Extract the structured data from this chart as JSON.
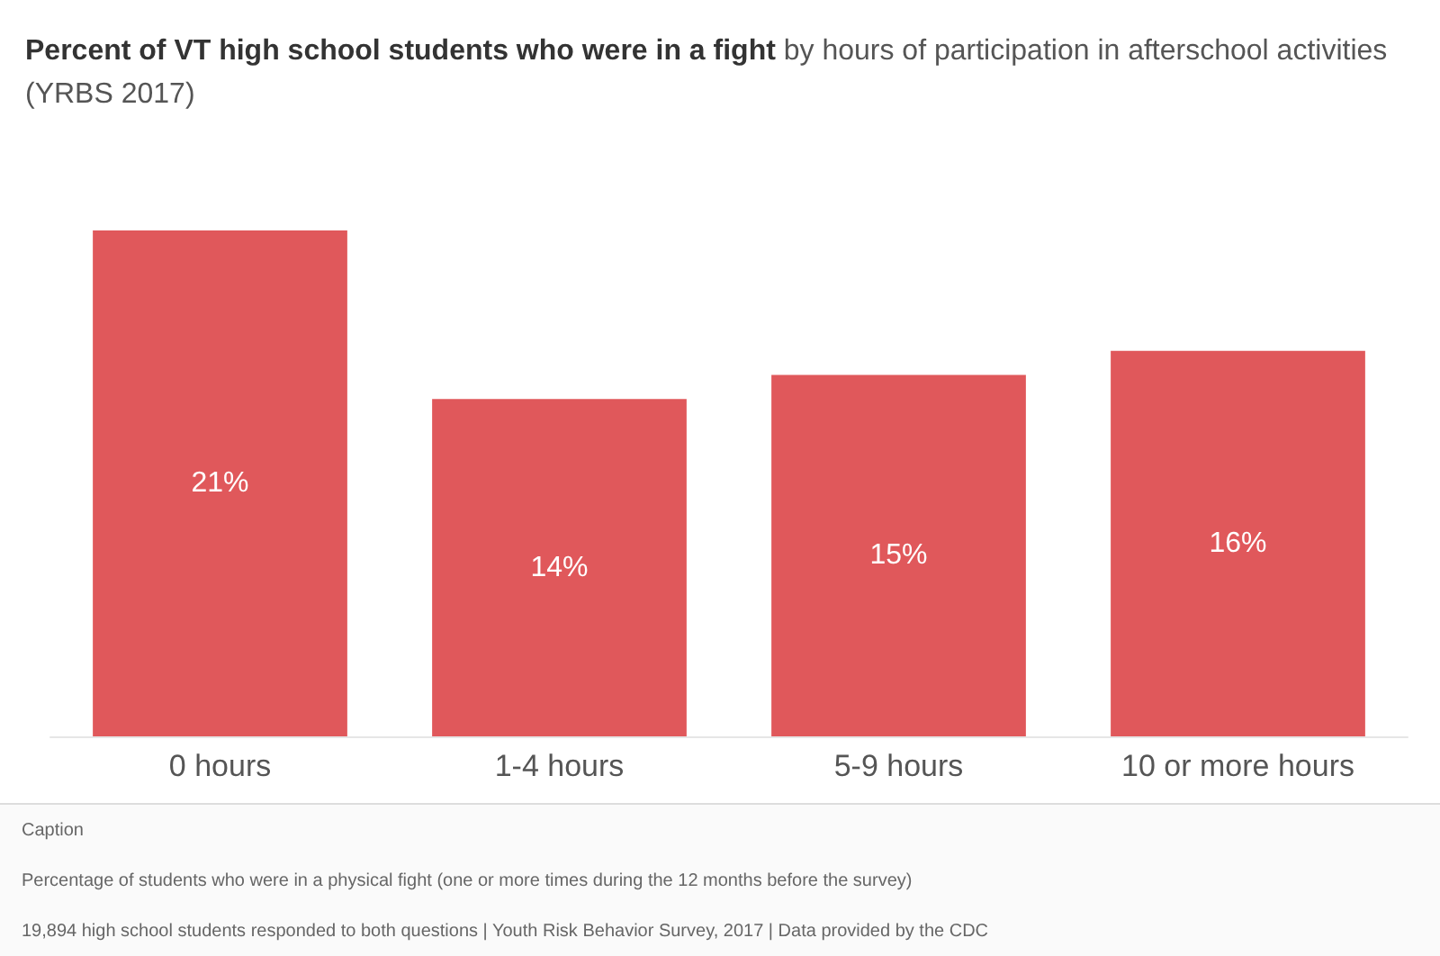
{
  "chart_data": {
    "type": "bar",
    "title": "Percent of VT high school students who were in a fight",
    "subtitle": "by hours of participation in afterschool activities (YRBS 2017)",
    "categories": [
      "0 hours",
      "1-4 hours",
      "5-9 hours",
      "10 or more hours"
    ],
    "values": [
      21,
      14,
      15,
      16
    ],
    "value_labels": [
      "21%",
      "14%",
      "15%",
      "16%"
    ],
    "color": "#e0585b",
    "annotations": [
      "Caption",
      "Percentage of students who were in a physical fight (one or more times during the 12 months before the survey)",
      "19,894  high school students responded to both questions | Youth Risk Behavior Survey, 2017 | Data provided by the CDC"
    ],
    "data_labels": false
  }
}
